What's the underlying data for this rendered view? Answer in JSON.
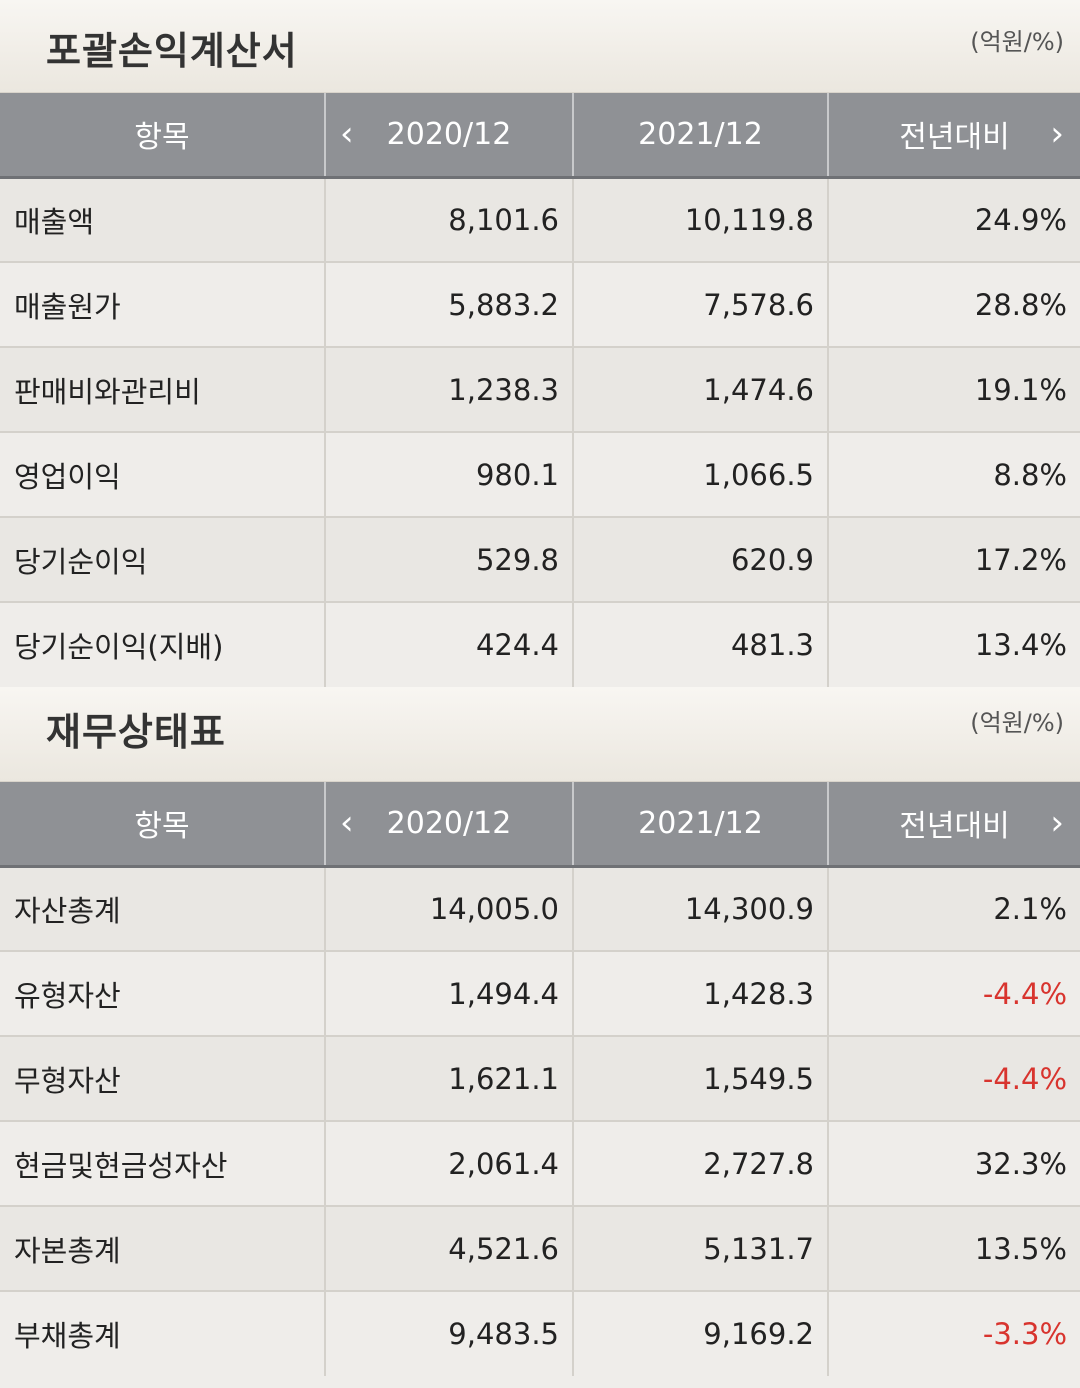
{
  "income": {
    "title": "포괄손익계산서",
    "unit": "(억원/%)",
    "headers": [
      "항목",
      "2020/12",
      "2021/12",
      "전년대비"
    ],
    "rows": [
      {
        "label": "매출액",
        "v2020": "8,101.6",
        "v2021": "10,119.8",
        "yoy": "24.9%"
      },
      {
        "label": "매출원가",
        "v2020": "5,883.2",
        "v2021": "7,578.6",
        "yoy": "28.8%"
      },
      {
        "label": "판매비와관리비",
        "v2020": "1,238.3",
        "v2021": "1,474.6",
        "yoy": "19.1%"
      },
      {
        "label": "영업이익",
        "v2020": "980.1",
        "v2021": "1,066.5",
        "yoy": "8.8%"
      },
      {
        "label": "당기순이익",
        "v2020": "529.8",
        "v2021": "620.9",
        "yoy": "17.2%"
      },
      {
        "label": "당기순이익(지배)",
        "v2020": "424.4",
        "v2021": "481.3",
        "yoy": "13.4%"
      }
    ]
  },
  "balance": {
    "title": "재무상태표",
    "unit": "(억원/%)",
    "headers": [
      "항목",
      "2020/12",
      "2021/12",
      "전년대비"
    ],
    "rows": [
      {
        "label": "자산총계",
        "v2020": "14,005.0",
        "v2021": "14,300.9",
        "yoy": "2.1%"
      },
      {
        "label": "유형자산",
        "v2020": "1,494.4",
        "v2021": "1,428.3",
        "yoy": "-4.4%"
      },
      {
        "label": "무형자산",
        "v2020": "1,621.1",
        "v2021": "1,549.5",
        "yoy": "-4.4%"
      },
      {
        "label": "현금및현금성자산",
        "v2020": "2,061.4",
        "v2021": "2,727.8",
        "yoy": "32.3%"
      },
      {
        "label": "자본총계",
        "v2020": "4,521.6",
        "v2021": "5,131.7",
        "yoy": "13.5%"
      },
      {
        "label": "부채총계",
        "v2020": "9,483.5",
        "v2021": "9,169.2",
        "yoy": "-3.3%"
      }
    ]
  },
  "colors": {
    "negative": "#d8342e",
    "header_bg": "#8f9195"
  },
  "icons": {
    "prev": "chevron-left-icon",
    "next": "chevron-right-icon"
  }
}
